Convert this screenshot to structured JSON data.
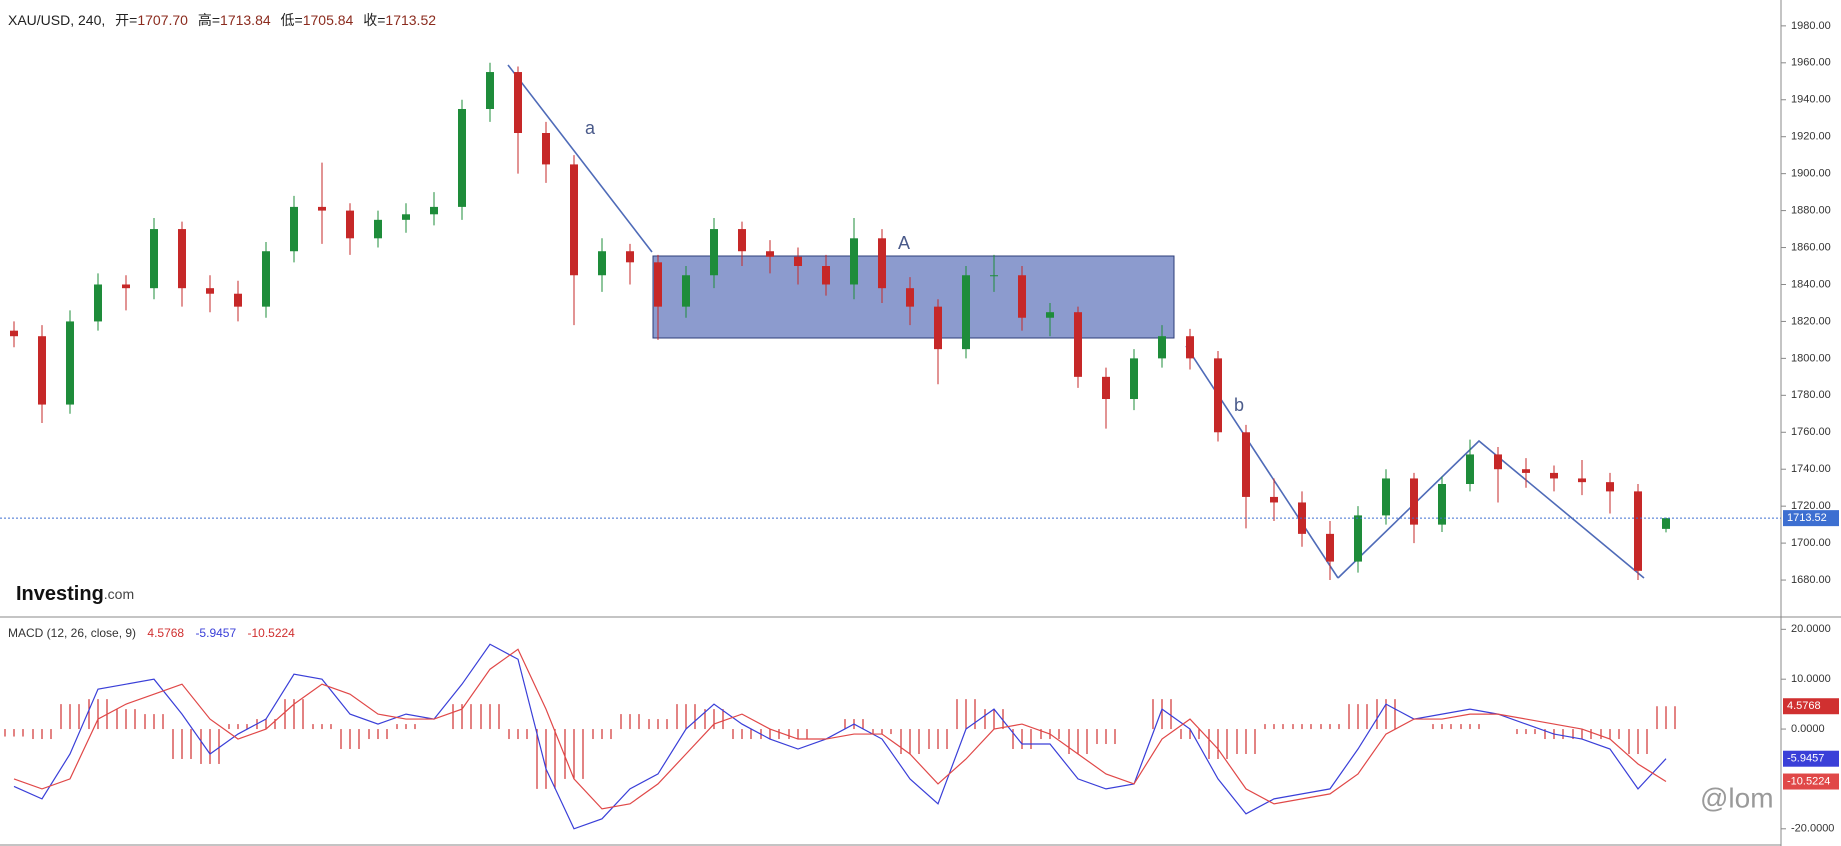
{
  "header": {
    "symbol": "XAU/USD, 240,",
    "fields": [
      {
        "label": "开=",
        "value": "1707.70"
      },
      {
        "label": "高=",
        "value": "1713.84"
      },
      {
        "label": "低=",
        "value": "1705.84"
      },
      {
        "label": "收=",
        "value": "1713.52"
      }
    ]
  },
  "watermark": [
    "Investing",
    ".com"
  ],
  "credit": "@lom",
  "annotations": {
    "wave_a": "a",
    "wave_b": "b",
    "zone": "A"
  },
  "chart_data": [
    {
      "type": "candlestick",
      "up_color": "#1e8c3a",
      "down_color": "#c62828",
      "last_color": "#3d6fd1",
      "ylim": [
        1660,
        1994
      ],
      "yticks": [
        {
          "value": 1680,
          "label": "1680.00"
        },
        {
          "value": 1700,
          "label": "1700.00"
        },
        {
          "value": 1720,
          "label": "1720.00"
        },
        {
          "value": 1740,
          "label": "1740.00"
        },
        {
          "value": 1760,
          "label": "1760.00"
        },
        {
          "value": 1780,
          "label": "1780.00"
        },
        {
          "value": 1800,
          "label": "1800.00"
        },
        {
          "value": 1820,
          "label": "1820.00"
        },
        {
          "value": 1840,
          "label": "1840.00"
        },
        {
          "value": 1860,
          "label": "1860.00"
        },
        {
          "value": 1880,
          "label": "1880.00"
        },
        {
          "value": 1900,
          "label": "1900.00"
        },
        {
          "value": 1920,
          "label": "1920.00"
        },
        {
          "value": 1940,
          "label": "1940.00"
        },
        {
          "value": 1960,
          "label": "1960.00"
        },
        {
          "value": 1980,
          "label": "1980.00"
        }
      ],
      "open": [
        1815,
        1812,
        1775,
        1820,
        1840,
        1838,
        1870,
        1838,
        1835,
        1828,
        1858,
        1882,
        1880,
        1865,
        1875,
        1878,
        1882,
        1935,
        1955,
        1922,
        1905,
        1845,
        1858,
        1852,
        1828,
        1845,
        1870,
        1858,
        1855,
        1850,
        1840,
        1865,
        1838,
        1828,
        1805,
        1845,
        1845,
        1822,
        1825,
        1790,
        1778,
        1800,
        1812,
        1800,
        1760,
        1725,
        1722,
        1705,
        1690,
        1715,
        1735,
        1710,
        1732,
        1748,
        1740,
        1738,
        1735,
        1733,
        1728,
        1707.7
      ],
      "high": [
        1820,
        1818,
        1826,
        1846,
        1845,
        1876,
        1874,
        1845,
        1842,
        1863,
        1888,
        1906,
        1884,
        1880,
        1884,
        1890,
        1940,
        1960,
        1958,
        1928,
        1910,
        1865,
        1862,
        1856,
        1850,
        1876,
        1874,
        1864,
        1860,
        1856,
        1876,
        1870,
        1844,
        1832,
        1850,
        1856,
        1850,
        1830,
        1828,
        1795,
        1805,
        1818,
        1816,
        1804,
        1764,
        1735,
        1728,
        1712,
        1720,
        1740,
        1738,
        1736,
        1756,
        1752,
        1746,
        1742,
        1745,
        1738,
        1732,
        1713.84
      ],
      "low": [
        1806,
        1765,
        1770,
        1815,
        1826,
        1832,
        1828,
        1825,
        1820,
        1822,
        1852,
        1862,
        1856,
        1860,
        1868,
        1872,
        1875,
        1928,
        1900,
        1895,
        1818,
        1836,
        1840,
        1810,
        1822,
        1838,
        1850,
        1846,
        1840,
        1834,
        1832,
        1830,
        1818,
        1786,
        1800,
        1836,
        1815,
        1812,
        1784,
        1762,
        1772,
        1795,
        1794,
        1755,
        1708,
        1712,
        1698,
        1680,
        1684,
        1710,
        1700,
        1706,
        1728,
        1722,
        1730,
        1728,
        1726,
        1716,
        1680,
        1705.84
      ],
      "close": [
        1812,
        1775,
        1820,
        1840,
        1838,
        1870,
        1838,
        1835,
        1828,
        1858,
        1882,
        1880,
        1865,
        1875,
        1878,
        1882,
        1935,
        1955,
        1922,
        1905,
        1845,
        1858,
        1852,
        1828,
        1845,
        1870,
        1858,
        1855,
        1850,
        1840,
        1865,
        1838,
        1828,
        1805,
        1845,
        1845,
        1822,
        1825,
        1790,
        1778,
        1800,
        1812,
        1800,
        1760,
        1725,
        1722,
        1705,
        1690,
        1715,
        1735,
        1710,
        1732,
        1748,
        1740,
        1738,
        1735,
        1733,
        1728,
        1685,
        1713.52
      ]
    },
    {
      "type": "macd",
      "title": "MACD (12, 26, close, 9)",
      "ylim": [
        -23.45,
        22.27
      ],
      "yticks": [
        {
          "value": 20,
          "label": "20.0000"
        },
        {
          "value": 10,
          "label": "10.0000"
        },
        {
          "value": 0,
          "label": "0.0000"
        },
        {
          "value": -20,
          "label": "-20.0000"
        }
      ],
      "macd_color": "#3a3fd8",
      "signal_color": "#e04848",
      "histogram_color": "#d03030",
      "macd": [
        -11.5,
        -14,
        -5,
        8,
        9,
        10,
        3,
        -5,
        -1,
        2,
        11,
        10,
        3,
        1,
        3,
        2,
        9,
        17,
        14,
        -8,
        -20,
        -18,
        -12,
        -9,
        0,
        5,
        1,
        -2,
        -4,
        -2,
        1,
        -2,
        -10,
        -15,
        0,
        4,
        -3,
        -3,
        -10,
        -12,
        -11,
        4,
        0,
        -10,
        -17,
        -14,
        -13,
        -12,
        -4,
        5,
        2,
        3,
        4,
        3,
        1,
        -1,
        -2,
        -4,
        -12,
        -5.9457
      ],
      "signal": [
        -10,
        -12,
        -10,
        2,
        5,
        7,
        9,
        2,
        -2,
        0,
        5,
        9,
        7,
        3,
        2,
        2,
        4,
        12,
        16,
        4,
        -10,
        -16,
        -15,
        -11,
        -5,
        1,
        3,
        0,
        -2,
        -2,
        -1,
        -1,
        -5,
        -11,
        -6,
        0,
        1,
        -1,
        -5,
        -9,
        -11,
        -2,
        2,
        -4,
        -12,
        -15,
        -14,
        -13,
        -9,
        -1,
        2,
        2,
        3,
        3,
        2,
        1,
        0,
        -2,
        -7,
        -10.5224
      ],
      "histogram": [
        -1.5,
        -2,
        5,
        6,
        4,
        3,
        -6,
        -7,
        1,
        2,
        6,
        1,
        -4,
        -2,
        1,
        0,
        5,
        5,
        -2,
        -12,
        -10,
        -2,
        3,
        2,
        5,
        4,
        -2,
        -2,
        -2,
        0,
        2,
        -1,
        -5,
        -4,
        6,
        4,
        -4,
        -2,
        -5,
        -3,
        0,
        6,
        -2,
        -6,
        -5,
        1,
        1,
        1,
        5,
        6,
        0,
        1,
        1,
        0,
        -1,
        -2,
        -2,
        -2,
        -5,
        4.5768
      ]
    }
  ]
}
